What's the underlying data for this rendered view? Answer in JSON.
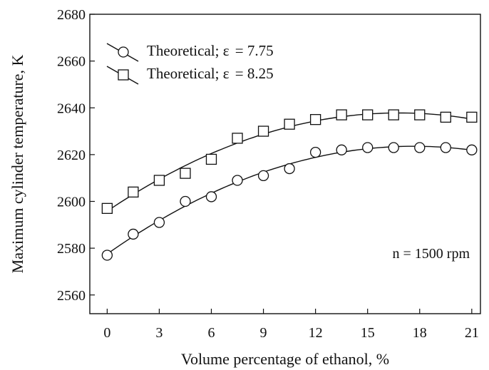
{
  "chart_data": {
    "type": "scatter",
    "title": "",
    "xlabel": "Volume percentage of ethanol, %",
    "ylabel": "Maximum cylinder temperature, K",
    "xlim": [
      -1,
      21.5
    ],
    "ylim": [
      2552,
      2680
    ],
    "x_ticks": [
      0,
      3,
      6,
      9,
      12,
      15,
      18,
      21
    ],
    "y_ticks": [
      2560,
      2580,
      2600,
      2620,
      2640,
      2660,
      2680
    ],
    "x_tick_labels": [
      "0",
      "3",
      "6",
      "9",
      "12",
      "15",
      "18",
      "21"
    ],
    "y_tick_labels": [
      "2560",
      "2580",
      "2600",
      "2620",
      "2640",
      "2660",
      "2680"
    ],
    "grid": false,
    "legend_position": "top-left",
    "x": [
      0,
      1.5,
      3,
      4.5,
      6,
      7.5,
      9,
      10.5,
      12,
      13.5,
      15,
      16.5,
      18,
      19.5,
      21
    ],
    "series": [
      {
        "name": "Theoretical; ε = 7.75",
        "legend_prefix": "Theoretical; ε",
        "legend_value": "= 7.75",
        "marker": "circle",
        "values": [
          2577,
          2586,
          2591,
          2600,
          2602,
          2609,
          2611,
          2614,
          2621,
          2622,
          2623,
          2623,
          2623,
          2623,
          2622
        ]
      },
      {
        "name": "Theoretical; ε = 8.25",
        "legend_prefix": "Theoretical; ε",
        "legend_value": "= 8.25",
        "marker": "square",
        "values": [
          2597,
          2604,
          2609,
          2612,
          2618,
          2627,
          2630,
          2633,
          2635,
          2637,
          2637,
          2637,
          2637,
          2636,
          2636
        ]
      }
    ],
    "annotation": "n = 1500 rpm"
  }
}
